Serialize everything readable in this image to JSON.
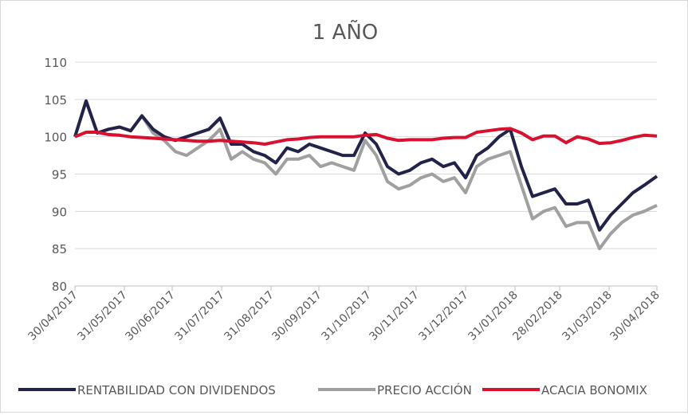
{
  "chart_data": {
    "type": "line",
    "title": "1 AÑO",
    "xlabel": "",
    "ylabel": "",
    "ylim": [
      80,
      110
    ],
    "yticks": [
      80,
      85,
      90,
      95,
      100,
      105,
      110
    ],
    "grid": "horizontal",
    "legend_position": "bottom",
    "xticks": [
      "30/04/2017",
      "31/05/2017",
      "30/06/2017",
      "31/07/2017",
      "31/08/2017",
      "30/09/2017",
      "31/10/2017",
      "30/11/2017",
      "31/12/2017",
      "31/01/2018",
      "28/02/2018",
      "31/03/2018",
      "30/04/2018"
    ],
    "x": [
      "2017-04-30",
      "2017-05-07",
      "2017-05-14",
      "2017-05-21",
      "2017-05-28",
      "2017-06-04",
      "2017-06-11",
      "2017-06-18",
      "2017-06-25",
      "2017-07-02",
      "2017-07-09",
      "2017-07-16",
      "2017-07-23",
      "2017-07-30",
      "2017-08-06",
      "2017-08-13",
      "2017-08-20",
      "2017-08-27",
      "2017-09-03",
      "2017-09-10",
      "2017-09-17",
      "2017-09-24",
      "2017-10-01",
      "2017-10-08",
      "2017-10-15",
      "2017-10-22",
      "2017-10-29",
      "2017-11-05",
      "2017-11-12",
      "2017-11-19",
      "2017-11-26",
      "2017-12-03",
      "2017-12-10",
      "2017-12-17",
      "2017-12-24",
      "2017-12-31",
      "2018-01-07",
      "2018-01-14",
      "2018-01-21",
      "2018-01-28",
      "2018-02-04",
      "2018-02-11",
      "2018-02-18",
      "2018-02-25",
      "2018-03-04",
      "2018-03-11",
      "2018-03-18",
      "2018-03-25",
      "2018-04-01",
      "2018-04-08",
      "2018-04-15",
      "2018-04-22",
      "2018-04-30"
    ],
    "series": [
      {
        "name": "RENTABILIDAD CON DIVIDENDOS",
        "color": "#23234a",
        "values": [
          100,
          104.8,
          100.5,
          101,
          101.3,
          100.8,
          102.8,
          101,
          100,
          99.5,
          100,
          100.5,
          101,
          102.5,
          99,
          99,
          98,
          97.5,
          96.5,
          98.5,
          98,
          99,
          98.5,
          98,
          97.5,
          97.5,
          100.5,
          99,
          96,
          95,
          95.5,
          96.5,
          97,
          96,
          96.5,
          94.5,
          97.5,
          98.5,
          100,
          101,
          96,
          92,
          92.5,
          93,
          91,
          91,
          91.5,
          87.5,
          89.5,
          91,
          92.5,
          93.5,
          94.7
        ]
      },
      {
        "name": "PRECIO ACCIÓN",
        "color": "#a0a0a0",
        "values": [
          100,
          104.8,
          100.5,
          101,
          101.3,
          100.8,
          102.8,
          100.5,
          99.5,
          98,
          97.5,
          98.5,
          99.5,
          101,
          97,
          98,
          97,
          96.5,
          95,
          97,
          97,
          97.5,
          96,
          96.5,
          96,
          95.5,
          99.5,
          97.5,
          94,
          93,
          93.5,
          94.5,
          95,
          94,
          94.5,
          92.5,
          96,
          97,
          97.5,
          98,
          93.5,
          89,
          90,
          90.5,
          88,
          88.5,
          88.5,
          85,
          87,
          88.5,
          89.5,
          90,
          90.8
        ]
      },
      {
        "name": "ACACIA BONOMIX",
        "color": "#d9112f",
        "values": [
          100,
          100.6,
          100.6,
          100.3,
          100.2,
          100,
          99.9,
          99.8,
          99.7,
          99.6,
          99.5,
          99.4,
          99.4,
          99.5,
          99.4,
          99.3,
          99.2,
          99,
          99.3,
          99.6,
          99.7,
          99.9,
          100,
          100,
          100,
          100,
          100.2,
          100.3,
          99.8,
          99.5,
          99.6,
          99.6,
          99.6,
          99.8,
          99.9,
          99.9,
          100.6,
          100.8,
          101,
          101.1,
          100.5,
          99.6,
          100.1,
          100.1,
          99.2,
          100,
          99.7,
          99.1,
          99.2,
          99.5,
          99.9,
          100.2,
          100.1
        ]
      }
    ]
  }
}
